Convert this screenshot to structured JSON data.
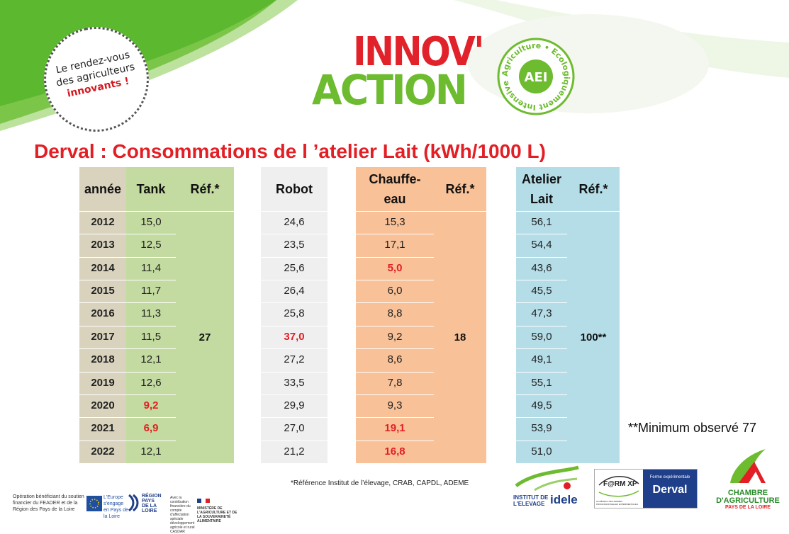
{
  "badge": {
    "line1": "Le rendez-vous",
    "line2": "des agriculteurs",
    "line3": "innovants !"
  },
  "logo": {
    "innov": "INNOV'",
    "action": "ACTION",
    "seal_ring": "Agriculture • Ecologiquement Intensive •",
    "seal_center": "AEI"
  },
  "title": "Derval : Consommations de l ’atelier Lait (kWh/1000 L)",
  "table": {
    "headers": {
      "annee": "année",
      "tank": "Tank",
      "ref1": "Réf.*",
      "robot": "Robot",
      "chauffe_l1": "Chauffe-",
      "chauffe_l2": "eau",
      "ref2": "Réf.*",
      "atelier_l1": "Atelier",
      "atelier_l2": "Lait",
      "ref3": "Réf.*"
    },
    "years": [
      "2012",
      "2013",
      "2014",
      "2015",
      "2016",
      "2017",
      "2018",
      "2019",
      "2020",
      "2021",
      "2022"
    ],
    "tank": [
      "15,0",
      "12,5",
      "11,4",
      "11,7",
      "11,3",
      "11,5",
      "12,1",
      "12,6",
      "9,2",
      "6,9",
      "12,1"
    ],
    "robot": [
      "24,6",
      "23,5",
      "25,6",
      "26,4",
      "25,8",
      "37,0",
      "27,2",
      "33,5",
      "29,9",
      "27,0",
      "21,2"
    ],
    "chauffe": [
      "15,3",
      "17,1",
      "5,0",
      "6,0",
      "8,8",
      "9,2",
      "8,6",
      "7,8",
      "9,3",
      "19,1",
      "16,8"
    ],
    "atelier": [
      "56,1",
      "54,4",
      "43,6",
      "45,5",
      "47,3",
      "59,0",
      "49,1",
      "55,1",
      "49,5",
      "53,9",
      "51,0"
    ],
    "ref_tank": "27",
    "ref_chauffe": "18",
    "ref_atelier": "100**"
  },
  "note": "**Minimum observé 77",
  "footnote": "*Référence Institut de l’élevage, CRAB, CAPDL, ADEME",
  "footer": {
    "feader_text": "Opération bénéficiant du soutien financier du FEADER et de la Région des Pays de la Loire",
    "europe_label": "L'Europe s'engage en Pays de la Loire",
    "region_l1": "RÉGION",
    "region_l2": "PAYS",
    "region_l3": "DE LA",
    "region_l4": "LOIRE",
    "ministere": "MINISTÈRE DE L'AGRICULTURE ET DE LA SOUVERAINETÉ ALIMENTAIRE",
    "casdar": "Avec la contribution financière du compte d'affectation spéciale développement agricole et rural CASDAR",
    "idele_l1": "INSTITUT DE",
    "idele_l2": "L'ELEVAGE",
    "idele_word": "idele",
    "farmxp": "F@RM XP",
    "ferme_exp": "Ferme expérimentale",
    "derval": "Derval",
    "farmxp_sub": "LE RÉSEAU DES FERMES PROFESSIONNELLES EXPÉRIMENTALES",
    "chambre_l1": "CHAMBRE",
    "chambre_l2": "D'AGRICULTURE",
    "chambre_l3": "PAYS DE LA LOIRE"
  },
  "colors": {
    "green_col": "#c3dba0",
    "beige_col": "#d9d3be",
    "robot_col": "#efefef",
    "orange_col": "#f8c198",
    "blue_col": "#b5dde8",
    "title_red": "#e31e24"
  }
}
